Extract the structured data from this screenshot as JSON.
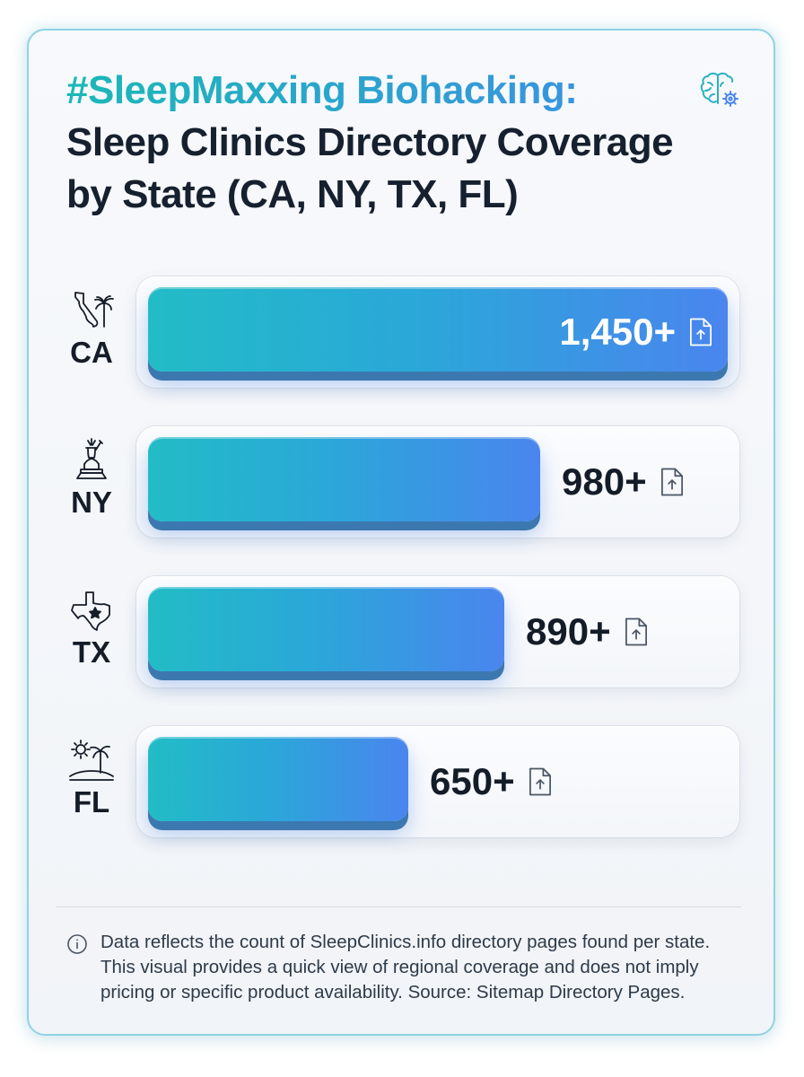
{
  "title_line1": "#SleepMaxxing Biohacking:",
  "title_line2": "Sleep Clinics Directory Coverage",
  "title_line3": "by State (CA, NY, TX, FL)",
  "footnote": "Data reflects the count of SleepClinics.info directory pages found per state. This visual provides a quick view of regional coverage and does not imply pricing or specific product availability. Source: Sitemap Directory Pages.",
  "colors": {
    "bar_start": "#22bcc6",
    "bar_end": "#4a85ee",
    "title_accent_start": "#1bb8b7",
    "title_accent_end": "#3f8ce8",
    "text": "#141c28"
  },
  "icons": {
    "header": "brain-gear-icon",
    "CA": "california-palm-icon",
    "NY": "statue-of-liberty-icon",
    "TX": "texas-star-icon",
    "FL": "sun-palm-island-icon",
    "value_marker": "document-upload-icon",
    "footnote": "info-icon"
  },
  "chart_data": {
    "type": "bar",
    "orientation": "horizontal",
    "categories": [
      "CA",
      "NY",
      "TX",
      "FL"
    ],
    "values": [
      1450,
      980,
      890,
      650
    ],
    "value_labels": [
      "1,450+",
      "980+",
      "890+",
      "650+"
    ],
    "xlim": [
      0,
      1450
    ],
    "grid": false,
    "legend": "none"
  }
}
